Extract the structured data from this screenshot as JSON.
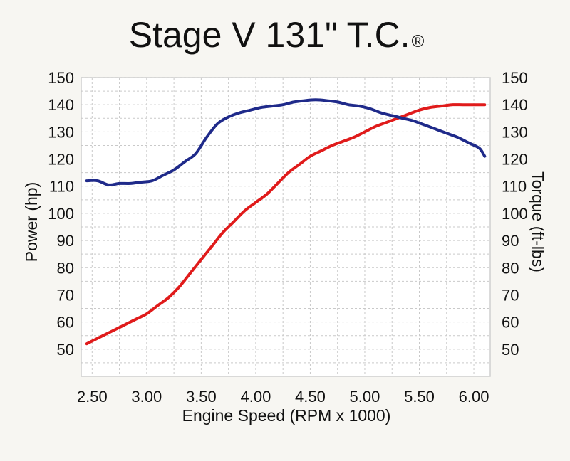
{
  "chart_data": {
    "type": "line",
    "title": "Stage V 131\" T.C.",
    "title_mark": "®",
    "xlabel": "Engine Speed (RPM x 1000)",
    "ylabel_left": "Power (hp)",
    "ylabel_right": "Torque (ft-lbs)",
    "xlim": [
      2.4,
      6.15
    ],
    "ylim": [
      40,
      150
    ],
    "x_ticks": [
      "2.50",
      "3.00",
      "3.50",
      "4.00",
      "4.50",
      "5.00",
      "5.50",
      "6.00"
    ],
    "x_tick_values": [
      2.5,
      3.0,
      3.5,
      4.0,
      4.5,
      5.0,
      5.5,
      6.0
    ],
    "y_ticks": [
      "50",
      "60",
      "70",
      "80",
      "90",
      "100",
      "110",
      "120",
      "130",
      "140",
      "150"
    ],
    "y_tick_values": [
      50,
      60,
      70,
      80,
      90,
      100,
      110,
      120,
      130,
      140,
      150
    ],
    "grid": true,
    "legend": "none",
    "series": [
      {
        "color": "#e01b1b",
        "axis": "left",
        "x": [
          2.45,
          2.6,
          2.75,
          2.9,
          3.0,
          3.1,
          3.2,
          3.3,
          3.4,
          3.5,
          3.6,
          3.7,
          3.8,
          3.9,
          4.0,
          4.1,
          4.2,
          4.3,
          4.4,
          4.5,
          4.6,
          4.7,
          4.8,
          4.9,
          5.0,
          5.1,
          5.2,
          5.3,
          5.4,
          5.5,
          5.6,
          5.7,
          5.8,
          5.9,
          6.0,
          6.1
        ],
        "values": [
          52,
          55,
          58,
          61,
          63,
          66,
          69,
          73,
          78,
          83,
          88,
          93,
          97,
          101,
          104,
          107,
          111,
          115,
          118,
          121,
          123,
          125,
          126.5,
          128,
          130,
          132,
          133.5,
          135,
          136.5,
          138,
          139,
          139.5,
          140,
          140,
          140,
          140
        ]
      },
      {
        "color": "#1f2a8a",
        "axis": "right",
        "x": [
          2.45,
          2.55,
          2.65,
          2.75,
          2.85,
          2.95,
          3.05,
          3.15,
          3.25,
          3.35,
          3.45,
          3.55,
          3.65,
          3.75,
          3.85,
          3.95,
          4.05,
          4.15,
          4.25,
          4.35,
          4.45,
          4.55,
          4.65,
          4.75,
          4.85,
          4.95,
          5.05,
          5.15,
          5.25,
          5.35,
          5.45,
          5.55,
          5.65,
          5.75,
          5.85,
          5.95,
          6.05,
          6.1
        ],
        "values": [
          112,
          112,
          110.5,
          111,
          111,
          111.5,
          112,
          114,
          116,
          119,
          122,
          128,
          133,
          135.5,
          137,
          138,
          139,
          139.5,
          140,
          141,
          141.5,
          141.8,
          141.5,
          141,
          140,
          139.5,
          138.5,
          137,
          136,
          135,
          134,
          132.5,
          131,
          129.5,
          128,
          126,
          124,
          121
        ]
      }
    ]
  }
}
